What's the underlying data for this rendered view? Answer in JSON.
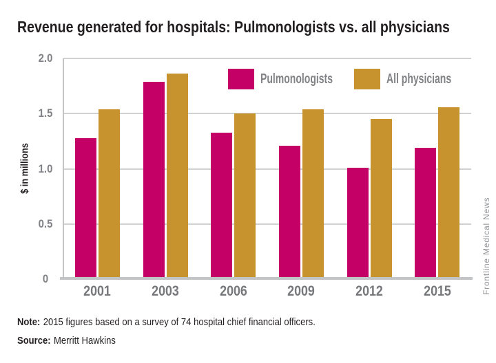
{
  "title": "Revenue generated for hospitals: Pulmonologists vs. all physicians",
  "note": {
    "label": "Note:",
    "text": "2015 figures based on a survey of 74 hospital chief financial officers."
  },
  "source": {
    "label": "Source:",
    "text": "Merritt Hawkins"
  },
  "credit": "Frontline Medical News",
  "colors": {
    "pulmonologists": "#C40066",
    "all_physicians": "#C6932F",
    "gridline": "#CFD1D2",
    "axis_line": "#C2C4C6",
    "tick_text": "#808285",
    "category_text": "#77787B",
    "title_text": "#231F20",
    "credit_text": "#939598"
  },
  "chart_data": {
    "type": "bar",
    "title": "Revenue generated for hospitals: Pulmonologists vs. all physicians",
    "xlabel": "",
    "ylabel": "$ in millions",
    "categories": [
      "2001",
      "2003",
      "2006",
      "2009",
      "2012",
      "2015"
    ],
    "series": [
      {
        "name": "Pulmonologists",
        "color": "#C40066",
        "values": [
          1.28,
          1.79,
          1.33,
          1.21,
          1.01,
          1.19
        ]
      },
      {
        "name": "All physicians",
        "color": "#C6932F",
        "values": [
          1.54,
          1.86,
          1.5,
          1.54,
          1.45,
          1.56
        ]
      }
    ],
    "ylim": [
      0,
      2.0
    ],
    "yticks": [
      0,
      0.5,
      1.0,
      1.5,
      2.0
    ],
    "ytick_labels": [
      "0",
      "0.5",
      "1.0",
      "1.5",
      "2.0"
    ],
    "grid": true,
    "legend_position": "top-inside"
  }
}
